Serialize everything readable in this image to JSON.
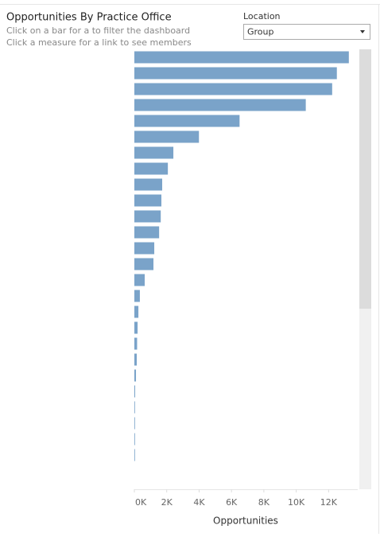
{
  "chart_data": {
    "type": "bar",
    "orientation": "horizontal",
    "title": "Opportunities By Practice Office",
    "subtitle": [
      "Click on a bar for a to filter the dashboard",
      "Click a measure for a link to see members"
    ],
    "filter": {
      "label": "Location",
      "value": "Group"
    },
    "x_label": "Opportunities",
    "categories": [
      null,
      null,
      null,
      null,
      null,
      null,
      null,
      null,
      null,
      null,
      null,
      null,
      null,
      null,
      null,
      null,
      null,
      null,
      null,
      null,
      null,
      null,
      null,
      null,
      null,
      null
    ],
    "values": [
      13250,
      12510,
      12220,
      10590,
      6500,
      3990,
      2410,
      2070,
      1720,
      1670,
      1630,
      1530,
      1230,
      1180,
      640,
      340,
      250,
      200,
      170,
      150,
      100,
      50,
      30,
      20,
      20,
      10
    ],
    "color": "#7aa3c9",
    "xlim": [
      0,
      13800
    ],
    "xticks": [
      {
        "value": 0,
        "label": "0K"
      },
      {
        "value": 2000,
        "label": "2K"
      },
      {
        "value": 4000,
        "label": "4K"
      },
      {
        "value": 6000,
        "label": "6K"
      },
      {
        "value": 8000,
        "label": "8K"
      },
      {
        "value": 10000,
        "label": "10K"
      },
      {
        "value": 12000,
        "label": "12K"
      }
    ],
    "grid": false
  }
}
